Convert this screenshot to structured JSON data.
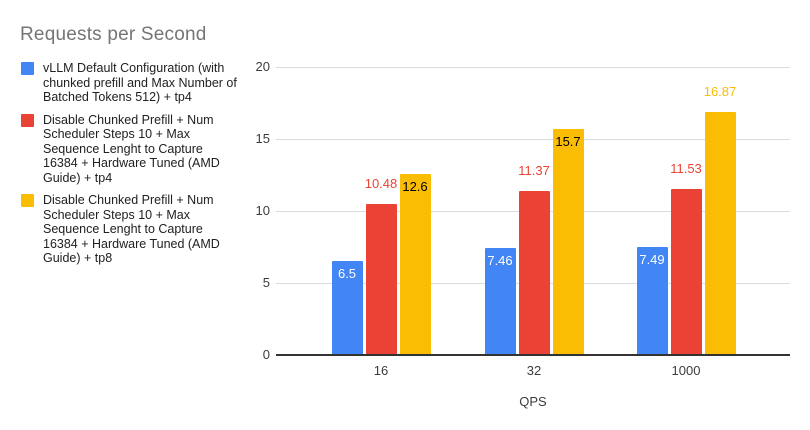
{
  "chart_data": {
    "type": "bar",
    "title": "Requests per Second",
    "xlabel": "QPS",
    "ylabel": "",
    "ylim": [
      0,
      20
    ],
    "yticks": [
      0,
      5,
      10,
      15,
      20
    ],
    "categories": [
      "16",
      "32",
      "1000"
    ],
    "grid": true,
    "legend_position": "left",
    "series": [
      {
        "name": "vLLM Default Configuration (with chunked prefill and Max Number of Batched Tokens 512) + tp4",
        "color": "#4285F4",
        "values": [
          6.5,
          7.46,
          7.49
        ],
        "labels": [
          "6.5",
          "7.46",
          "7.49"
        ],
        "label_positions": [
          "inside",
          "inside",
          "inside"
        ],
        "label_colors": [
          "#ffffff",
          "#ffffff",
          "#ffffff"
        ]
      },
      {
        "name": "Disable Chunked Prefill + Num Scheduler Steps 10 + Max Sequence Lenght to Capture 16384 + Hardware Tuned (AMD Guide) + tp4",
        "color": "#EA4335",
        "values": [
          10.48,
          11.37,
          11.53
        ],
        "labels": [
          "10.48",
          "11.37",
          "11.53"
        ],
        "label_positions": [
          "above",
          "above",
          "above"
        ],
        "label_colors": [
          "#EA4335",
          "#EA4335",
          "#EA4335"
        ]
      },
      {
        "name": "Disable Chunked Prefill + Num Scheduler Steps 10 + Max Sequence Lenght to Capture 16384 + Hardware Tuned (AMD Guide) + tp8",
        "color": "#FBBC04",
        "values": [
          12.6,
          15.7,
          16.87
        ],
        "labels": [
          "12.6",
          "15.7",
          "16.87"
        ],
        "label_positions": [
          "inside",
          "inside",
          "above"
        ],
        "label_colors": [
          "#000000",
          "#000000",
          "#FBBC04"
        ]
      }
    ]
  },
  "colors": {
    "background": "#ffffff",
    "title": "#757575",
    "axis_text": "#3c3c3c",
    "gridline": "#dadce0",
    "baseline": "#333333",
    "legend_text": "#212121"
  }
}
